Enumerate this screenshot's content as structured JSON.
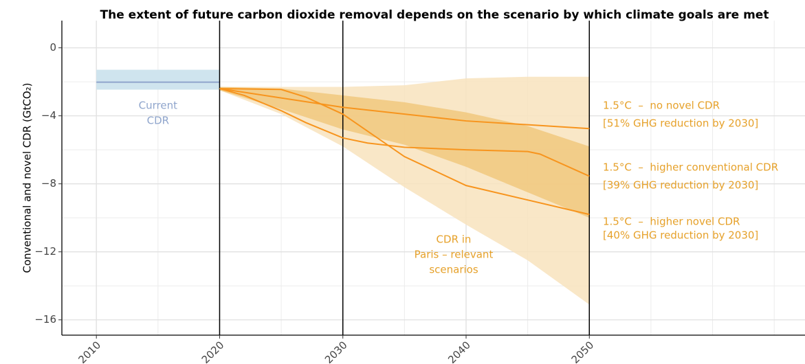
{
  "chart_data": {
    "type": "line",
    "title": "The extent of future carbon dioxide removal depends on the scenario by which climate goals are met",
    "y_label": "Conventional and novel CDR (GtCO₂)",
    "xlim": [
      2007.2,
      2067.5
    ],
    "ylim": [
      -16.9,
      1.6
    ],
    "xticks": [
      2010,
      2020,
      2030,
      2040,
      2050
    ],
    "yticks": [
      {
        "value": 0,
        "label": "0"
      },
      {
        "value": -4,
        "label": "−4"
      },
      {
        "value": -8,
        "label": "−8"
      },
      {
        "value": -12,
        "label": "−12"
      },
      {
        "value": -16,
        "label": "−16"
      }
    ],
    "minor_xgrid": [
      2015,
      2025,
      2035,
      2045,
      2055,
      2060,
      2065
    ],
    "minor_ygrid": [
      -2,
      -6,
      -10,
      -14
    ],
    "vlines": [
      2020,
      2030,
      2050
    ],
    "grid": true,
    "current": {
      "label": [
        "Current",
        "CDR"
      ],
      "x": [
        2010,
        2020
      ],
      "value": -2.02,
      "low": -2.46,
      "high": -1.29,
      "color": "#8fa5cc",
      "band_color": "#cfe4ee"
    },
    "bands": [
      {
        "color": "#f8e3bd",
        "x": [
          2020,
          2025,
          2030,
          2035,
          2040,
          2045,
          2050
        ],
        "upper": [
          -2.3,
          -2.3,
          -2.3,
          -2.2,
          -1.8,
          -1.7,
          -1.7
        ],
        "lower": [
          -2.5,
          -3.9,
          -5.8,
          -8.2,
          -10.4,
          -12.5,
          -15.1
        ]
      },
      {
        "color": "#f1c87e",
        "x": [
          2020,
          2025,
          2030,
          2035,
          2040,
          2045,
          2050
        ],
        "upper": [
          -2.3,
          -2.4,
          -2.8,
          -3.2,
          -3.8,
          -4.6,
          -5.8
        ],
        "lower": [
          -2.5,
          -3.6,
          -4.8,
          -5.7,
          -7.0,
          -8.5,
          -10.0
        ]
      }
    ],
    "band_label": [
      "CDR in",
      "Paris – relevant",
      "scenarios"
    ],
    "label_color": "#e6a12a",
    "series": [
      {
        "name": "1.5°C  –  no novel CDR",
        "note": "[51% GHG reduction by 2030]",
        "color": "#f7941d",
        "x": [
          2020,
          2030,
          2040,
          2050
        ],
        "values": [
          -2.4,
          -3.5,
          -4.3,
          -4.75
        ]
      },
      {
        "name": "1.5°C  –  higher conventional CDR",
        "note": "[39% GHG reduction by 2030]",
        "color": "#f7941d",
        "x": [
          2020,
          2022,
          2025,
          2027,
          2030,
          2032,
          2035,
          2040,
          2045,
          2046,
          2050
        ],
        "values": [
          -2.4,
          -2.8,
          -3.7,
          -4.4,
          -5.3,
          -5.6,
          -5.85,
          -6.0,
          -6.1,
          -6.25,
          -7.55
        ]
      },
      {
        "name": "1.5°C  –  higher novel CDR",
        "note": "[40% GHG reduction by 2030]",
        "color": "#f7941d",
        "x": [
          2020,
          2025,
          2027,
          2030,
          2035,
          2040,
          2050
        ],
        "values": [
          -2.4,
          -2.45,
          -2.9,
          -3.9,
          -6.4,
          -8.1,
          -9.8
        ]
      }
    ]
  }
}
